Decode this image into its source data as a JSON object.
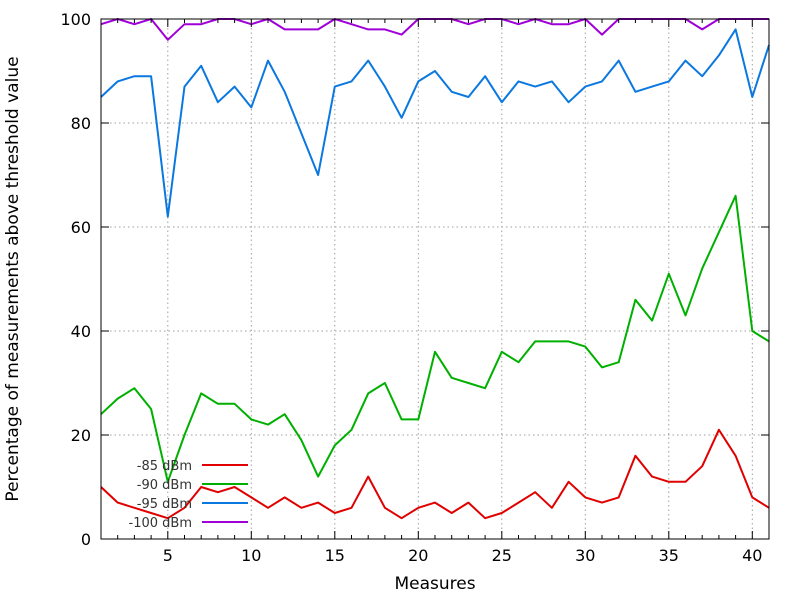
{
  "chart_data": {
    "type": "line",
    "title": "",
    "xlabel": "Measures",
    "ylabel": "Percentage of measurements above threshold value",
    "xlim": [
      1,
      41
    ],
    "ylim": [
      0,
      100
    ],
    "x_ticks": [
      5,
      10,
      15,
      20,
      25,
      30,
      35,
      40
    ],
    "y_ticks": [
      0,
      20,
      40,
      60,
      80,
      100
    ],
    "grid": true,
    "legend_position": "bottom-left",
    "x": [
      1,
      2,
      3,
      4,
      5,
      6,
      7,
      8,
      9,
      10,
      11,
      12,
      13,
      14,
      15,
      16,
      17,
      18,
      19,
      20,
      21,
      22,
      23,
      24,
      25,
      26,
      27,
      28,
      29,
      30,
      31,
      32,
      33,
      34,
      35,
      36,
      37,
      38,
      39,
      40,
      41
    ],
    "series": [
      {
        "name": "-85 dBm",
        "color": "#e00000",
        "values": [
          10,
          7,
          6,
          5,
          4,
          6,
          10,
          9,
          10,
          8,
          6,
          8,
          6,
          7,
          5,
          6,
          12,
          6,
          4,
          6,
          7,
          5,
          7,
          4,
          5,
          7,
          9,
          6,
          11,
          8,
          7,
          8,
          16,
          12,
          11,
          11,
          14,
          21,
          16,
          8,
          6
        ]
      },
      {
        "name": "-90 dBm",
        "color": "#00b000",
        "values": [
          24,
          27,
          29,
          25,
          11,
          20,
          28,
          26,
          26,
          23,
          22,
          24,
          19,
          12,
          18,
          21,
          28,
          30,
          23,
          23,
          36,
          31,
          30,
          29,
          36,
          34,
          38,
          38,
          38,
          37,
          33,
          34,
          46,
          42,
          51,
          43,
          52,
          59,
          66,
          40,
          38
        ]
      },
      {
        "name": "-95 dBm",
        "color": "#0b78e0",
        "values": [
          85,
          88,
          89,
          89,
          62,
          87,
          91,
          84,
          87,
          83,
          92,
          86,
          78,
          70,
          87,
          88,
          92,
          87,
          81,
          88,
          90,
          86,
          85,
          89,
          84,
          88,
          87,
          88,
          84,
          87,
          88,
          92,
          86,
          87,
          88,
          92,
          89,
          93,
          98,
          85,
          95
        ]
      },
      {
        "name": "-100 dBm",
        "color": "#a000d8",
        "values": [
          99,
          100,
          99,
          100,
          96,
          99,
          99,
          100,
          100,
          99,
          100,
          98,
          98,
          98,
          100,
          99,
          98,
          98,
          97,
          100,
          100,
          100,
          99,
          100,
          100,
          99,
          100,
          99,
          99,
          100,
          97,
          100,
          100,
          100,
          100,
          100,
          98,
          100,
          100,
          100,
          100
        ]
      }
    ]
  }
}
